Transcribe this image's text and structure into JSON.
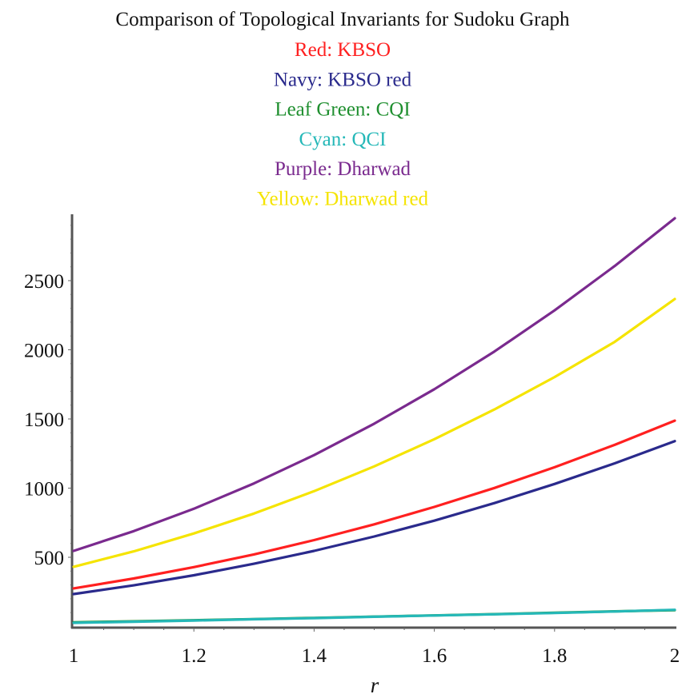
{
  "chart_data": {
    "type": "line",
    "title": "Comparison of Topological Invariants for Sudoku Graph",
    "legend_lines": [
      {
        "text": "Red: KBSO",
        "color": "#ff2020"
      },
      {
        "text": "Navy: KBSO red",
        "color": "#2a2a8c"
      },
      {
        "text": "Leaf Green: CQI",
        "color": "#1f8f2f"
      },
      {
        "text": "Cyan: QCI",
        "color": "#25b8b8"
      },
      {
        "text": "Purple: Dharwad",
        "color": "#7a2a8e"
      },
      {
        "text": "Yellow: Dharwad red",
        "color": "#f5e400"
      }
    ],
    "legend_placement": "top",
    "xlabel": "r",
    "ylabel": "",
    "xlim": [
      1,
      2
    ],
    "ylim": [
      0,
      2967
    ],
    "grid": false,
    "x_ticks": [
      "1",
      "1.2",
      "1.4",
      "1.6",
      "1.8",
      "2"
    ],
    "y_ticks": [
      "500",
      "1000",
      "1500",
      "2000",
      "2500"
    ],
    "x": [
      1,
      1.1,
      1.2,
      1.3,
      1.4,
      1.5,
      1.6,
      1.7,
      1.8,
      1.9,
      2
    ],
    "series": [
      {
        "name": "Leaf Green: CQI",
        "color": "#1f8f2f",
        "values": [
          30,
          37,
          45,
          53,
          62,
          71,
          80,
          89,
          99,
          109,
          118
        ]
      },
      {
        "name": "Cyan: QCI",
        "color": "#25b8b8",
        "values": [
          26,
          34,
          43,
          52,
          60,
          70,
          79,
          88,
          97,
          108,
          120
        ]
      },
      {
        "name": "Navy: KBSO red",
        "color": "#2a2a8c",
        "values": [
          234,
          297,
          370,
          453,
          546,
          650,
          765,
          892,
          1030,
          1179,
          1340
        ]
      },
      {
        "name": "Red: KBSO",
        "color": "#ff2020",
        "values": [
          275,
          347,
          429,
          521,
          624,
          738,
          864,
          1001,
          1151,
          1313,
          1488
        ]
      },
      {
        "name": "Yellow: Dharwad red",
        "color": "#f5e400",
        "values": [
          431,
          543,
          672,
          816,
          978,
          1157,
          1354,
          1569,
          1803,
          2057,
          2367
        ]
      },
      {
        "name": "Purple: Dharwad",
        "color": "#7a2a8e",
        "values": [
          546,
          689,
          851,
          1034,
          1239,
          1466,
          1715,
          1988,
          2285,
          2606,
          2951
        ]
      }
    ]
  }
}
